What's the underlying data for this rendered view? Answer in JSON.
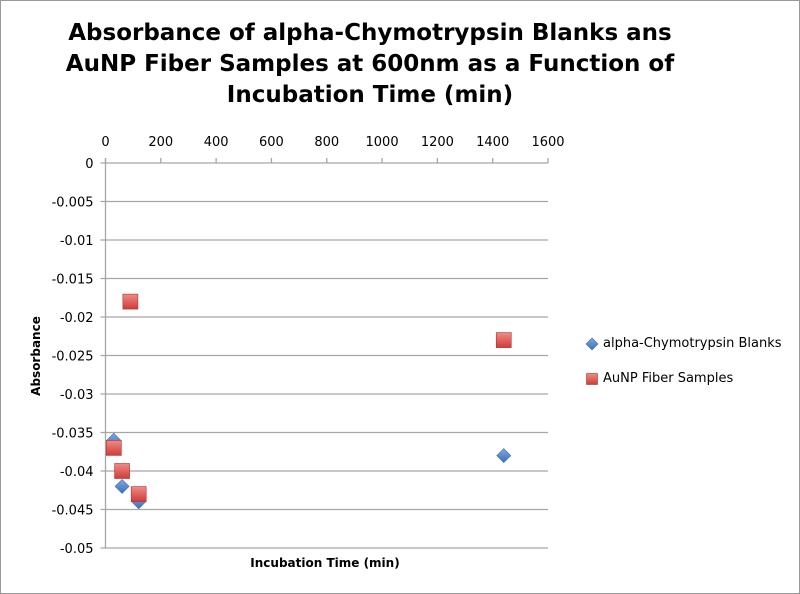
{
  "chart_data": {
    "type": "scatter",
    "title": "Absorbance of alpha-Chymotrypsin Blanks ans AuNP Fiber Samples at 600nm as a Function of Incubation Time (min)",
    "xlabel": "Incubation Time (min)",
    "ylabel": "Absorbance",
    "xlim": [
      0,
      1600
    ],
    "ylim": [
      -0.05,
      0
    ],
    "x_axis_position": "top",
    "x_ticks": [
      "0",
      "200",
      "400",
      "600",
      "800",
      "1000",
      "1200",
      "1400",
      "1600"
    ],
    "y_ticks": [
      "0",
      "-0.005",
      "-0.01",
      "-0.015",
      "-0.02",
      "-0.025",
      "-0.03",
      "-0.035",
      "-0.04",
      "-0.045",
      "-0.05"
    ],
    "grid": "horizontal",
    "legend_position": "right",
    "series": [
      {
        "name": "alpha-Chymotrypsin Blanks",
        "marker": "diamond",
        "color": "#4a7ebb",
        "points": [
          [
            30,
            -0.036
          ],
          [
            60,
            -0.042
          ],
          [
            120,
            -0.044
          ],
          [
            1440,
            -0.038
          ]
        ]
      },
      {
        "name": "AuNP Fiber Samples",
        "marker": "square",
        "color": "#c0504d",
        "points": [
          [
            30,
            -0.037
          ],
          [
            60,
            -0.04
          ],
          [
            90,
            -0.018
          ],
          [
            120,
            -0.043
          ],
          [
            1440,
            -0.023
          ]
        ]
      }
    ]
  }
}
